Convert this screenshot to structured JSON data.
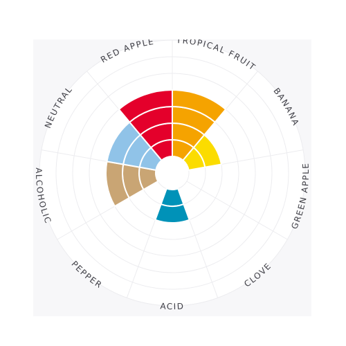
{
  "chart_data": {
    "type": "polar-bar",
    "title": "",
    "categories": [
      "TROPICAL FRUIT",
      "BANANA",
      "GREEN APPLE",
      "CLOVE",
      "ACID",
      "PEPPER",
      "ALCOHOLIC",
      "NEUTRAL",
      "RED APPLE"
    ],
    "values": [
      4,
      2,
      0,
      0,
      2,
      0,
      3,
      3,
      4
    ],
    "max": 7,
    "rings": 7,
    "grid": true,
    "colors": [
      "#f5a300",
      "#fbdc00",
      "#9e9e9e",
      "#9e9e9e",
      "#0092b8",
      "#9e9e9e",
      "#c9a574",
      "#90c3e8",
      "#e4002b"
    ]
  }
}
